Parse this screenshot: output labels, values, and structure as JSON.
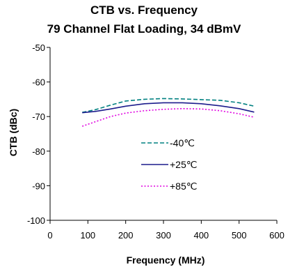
{
  "chart_data": {
    "type": "line",
    "title": "CTB vs. Frequency",
    "subtitle": "79 Channel Flat Loading, 34 dBmV",
    "xlabel": "Frequency (MHz)",
    "ylabel": "CTB (dBc)",
    "xlim": [
      0,
      600
    ],
    "ylim": [
      -100,
      -50
    ],
    "xticks": [
      0,
      100,
      200,
      300,
      400,
      500,
      600
    ],
    "yticks": [
      -50,
      -60,
      -70,
      -80,
      -90,
      -100
    ],
    "grid": false,
    "legend_position": "center-right",
    "series": [
      {
        "name": "-40℃",
        "color": "#008080",
        "dash": "dashed",
        "x": [
          85,
          120,
          160,
          200,
          250,
          300,
          350,
          400,
          450,
          500,
          540
        ],
        "y": [
          -68.8,
          -68.0,
          -66.7,
          -65.5,
          -65.0,
          -64.8,
          -64.9,
          -65.1,
          -65.3,
          -66.0,
          -67.0
        ]
      },
      {
        "name": "+25℃",
        "color": "#1c1c8c",
        "dash": "solid",
        "x": [
          85,
          120,
          160,
          200,
          250,
          300,
          350,
          400,
          450,
          500,
          540
        ],
        "y": [
          -68.9,
          -68.5,
          -67.8,
          -67.0,
          -66.3,
          -66.0,
          -66.0,
          -66.3,
          -66.9,
          -67.7,
          -68.7
        ]
      },
      {
        "name": "+85℃",
        "color": "#e000e0",
        "dash": "dotted",
        "x": [
          85,
          120,
          160,
          200,
          250,
          300,
          350,
          400,
          450,
          500,
          540
        ],
        "y": [
          -72.8,
          -71.5,
          -70.0,
          -69.0,
          -68.3,
          -67.9,
          -67.7,
          -67.8,
          -68.3,
          -69.2,
          -70.2
        ]
      }
    ]
  }
}
